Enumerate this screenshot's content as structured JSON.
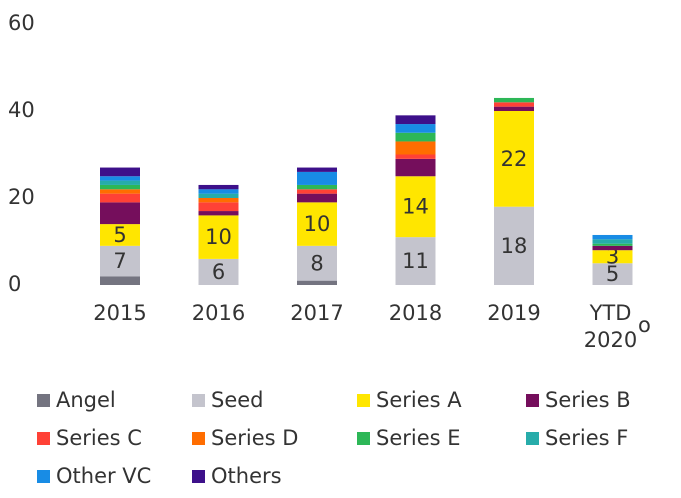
{
  "chart_data": {
    "type": "stacked_bar",
    "categories": [
      "2015",
      "2016",
      "2017",
      "2018",
      "2019",
      "YTD 2020"
    ],
    "annotations": [
      "o"
    ],
    "series": [
      {
        "name": "Angel",
        "color": "#747480",
        "values": [
          2,
          0,
          1,
          0,
          0,
          0
        ]
      },
      {
        "name": "Seed",
        "color": "#c4c4cd",
        "values": [
          7,
          6,
          8,
          11,
          18,
          5
        ],
        "data_labels": true
      },
      {
        "name": "Series A",
        "color": "#ffe600",
        "values": [
          5,
          10,
          10,
          14,
          22,
          3
        ],
        "data_labels": true
      },
      {
        "name": "Series B",
        "color": "#750e5c",
        "values": [
          5,
          1,
          2,
          4,
          1,
          1
        ]
      },
      {
        "name": "Series C",
        "color": "#ff4136",
        "values": [
          2,
          2,
          1,
          1,
          1,
          0
        ]
      },
      {
        "name": "Series D",
        "color": "#ff6d00",
        "values": [
          1,
          1,
          0,
          3,
          0,
          0
        ]
      },
      {
        "name": "Series E",
        "color": "#2db757",
        "values": [
          1,
          0,
          1,
          2,
          1,
          0.5
        ]
      },
      {
        "name": "Series F",
        "color": "#27acaa",
        "values": [
          1,
          1,
          0,
          0,
          0,
          1
        ]
      },
      {
        "name": "Other VC",
        "color": "#188ce5",
        "values": [
          1,
          1,
          3,
          2,
          0,
          1
        ]
      },
      {
        "name": "Others",
        "color": "#3d108a",
        "values": [
          2,
          1,
          1,
          2,
          0,
          0
        ]
      }
    ],
    "ylim": [
      0,
      60
    ],
    "yticks": [
      0,
      20,
      40,
      60
    ]
  }
}
